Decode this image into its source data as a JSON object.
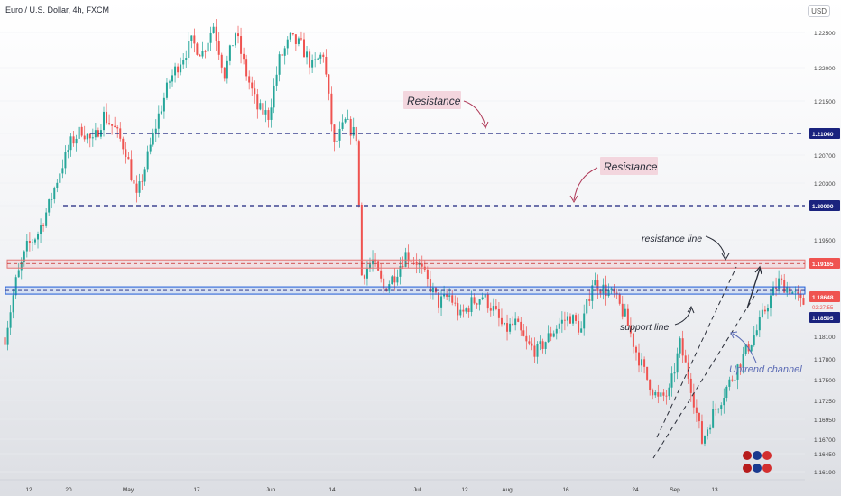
{
  "header": {
    "title": "Euro / U.S. Dollar, 4h, FXCM",
    "currency": "USD"
  },
  "chart_data": {
    "type": "candlestick",
    "x_ticks": [
      "12",
      "20",
      "May",
      "17",
      "Jun",
      "14",
      "Jul",
      "12",
      "Aug",
      "16",
      "24",
      "Sep",
      "13"
    ],
    "y_ticks": [
      "1.22500",
      "1.22000",
      "1.21500",
      "1.21040",
      "1.20700",
      "1.20300",
      "1.20000",
      "1.19500",
      "1.19165",
      "1.18648",
      "1.18595",
      "1.18100",
      "1.17800",
      "1.17500",
      "1.17250",
      "1.16950",
      "1.16700",
      "1.16450",
      "1.16190"
    ],
    "price_labels": {
      "r1": "1.21040",
      "r2": "1.20000",
      "r_zone": "1.19165",
      "current": "1.18648",
      "countdown": "02:27:55",
      "s_zone": "1.18595"
    },
    "levels": {
      "resistance_1": 1.2104,
      "resistance_2": 1.2,
      "resistance_zone": 1.19165,
      "support_zone": 1.18595
    },
    "annotations": {
      "resistance_1": "Resistance",
      "resistance_2": "Resistance",
      "resistance_line": "resistance line",
      "support_line": "support line",
      "uptrend_channel": "Uptrend channel"
    },
    "price_path": [
      [
        0,
        1.181
      ],
      [
        4,
        1.189
      ],
      [
        8,
        1.194
      ],
      [
        12,
        1.196
      ],
      [
        16,
        1.2
      ],
      [
        20,
        1.205
      ],
      [
        24,
        1.209
      ],
      [
        28,
        1.211
      ],
      [
        32,
        1.209
      ],
      [
        36,
        1.213
      ],
      [
        40,
        1.211
      ],
      [
        44,
        1.208
      ],
      [
        48,
        1.201
      ],
      [
        52,
        1.207
      ],
      [
        56,
        1.213
      ],
      [
        60,
        1.218
      ],
      [
        64,
        1.221
      ],
      [
        68,
        1.2235
      ],
      [
        72,
        1.222
      ],
      [
        76,
        1.226
      ],
      [
        80,
        1.219
      ],
      [
        84,
        1.225
      ],
      [
        88,
        1.219
      ],
      [
        92,
        1.214
      ],
      [
        96,
        1.213
      ],
      [
        100,
        1.221
      ],
      [
        104,
        1.224
      ],
      [
        108,
        1.223
      ],
      [
        112,
        1.22
      ],
      [
        116,
        1.222
      ],
      [
        120,
        1.2085
      ],
      [
        124,
        1.212
      ],
      [
        128,
        1.21
      ],
      [
        130,
        1.19
      ],
      [
        134,
        1.192
      ],
      [
        138,
        1.188
      ],
      [
        142,
        1.19
      ],
      [
        146,
        1.193
      ],
      [
        150,
        1.192
      ],
      [
        154,
        1.189
      ],
      [
        158,
        1.186
      ],
      [
        162,
        1.187
      ],
      [
        166,
        1.184
      ],
      [
        170,
        1.186
      ],
      [
        174,
        1.187
      ],
      [
        178,
        1.185
      ],
      [
        182,
        1.182
      ],
      [
        186,
        1.183
      ],
      [
        190,
        1.18
      ],
      [
        194,
        1.179
      ],
      [
        198,
        1.181
      ],
      [
        202,
        1.183
      ],
      [
        206,
        1.184
      ],
      [
        210,
        1.182
      ],
      [
        214,
        1.189
      ],
      [
        218,
        1.188
      ],
      [
        222,
        1.187
      ],
      [
        226,
        1.184
      ],
      [
        230,
        1.179
      ],
      [
        234,
        1.175
      ],
      [
        238,
        1.172
      ],
      [
        242,
        1.173
      ],
      [
        246,
        1.18
      ],
      [
        250,
        1.174
      ],
      [
        254,
        1.166
      ],
      [
        258,
        1.17
      ],
      [
        262,
        1.173
      ],
      [
        266,
        1.176
      ],
      [
        270,
        1.179
      ],
      [
        274,
        1.182
      ],
      [
        278,
        1.186
      ],
      [
        282,
        1.189
      ],
      [
        286,
        1.188
      ],
      [
        290,
        1.186
      ]
    ]
  }
}
